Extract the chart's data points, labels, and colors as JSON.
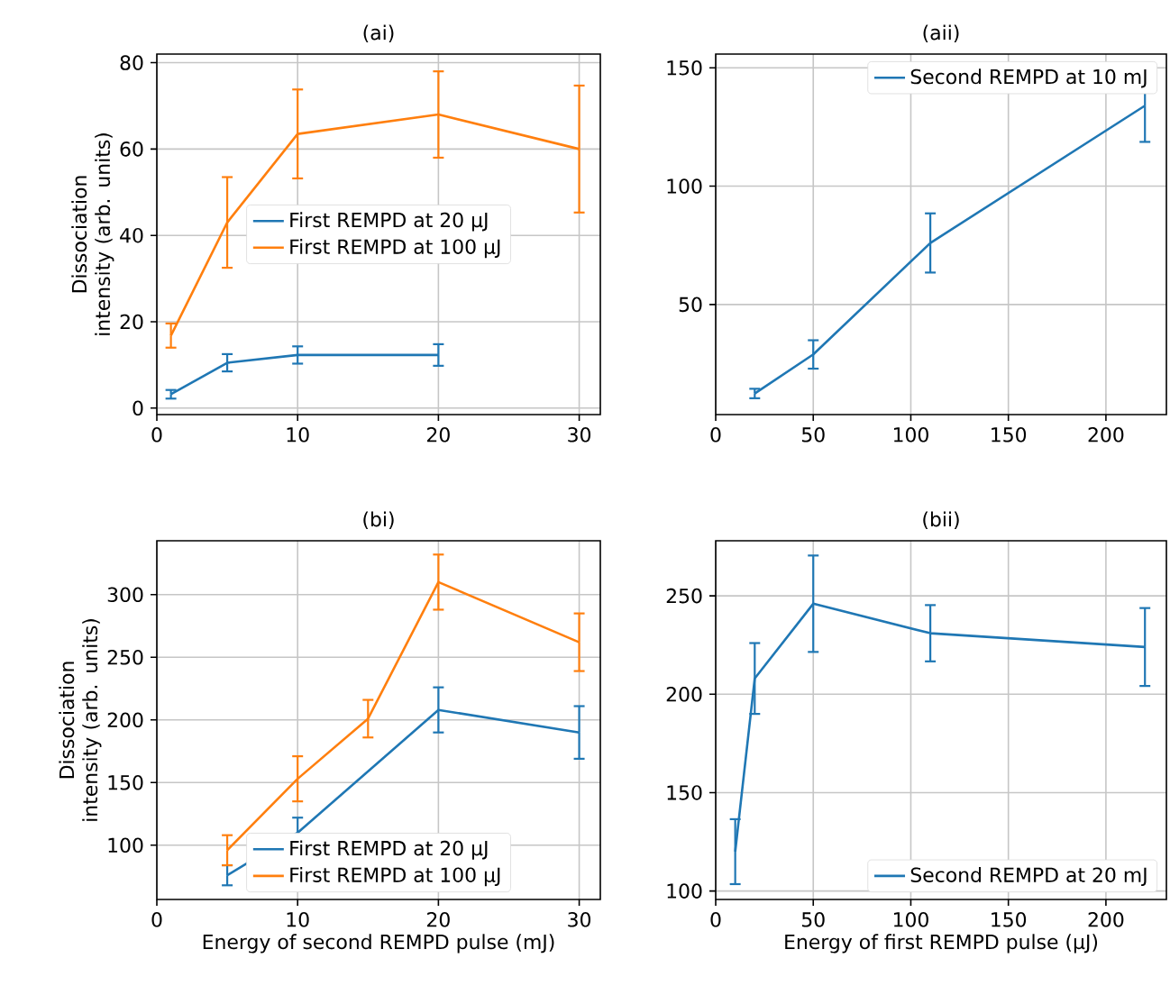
{
  "chart_data": [
    {
      "type": "line",
      "title": "(ai)",
      "ylabel": "Dissociation intensity (arb. units)",
      "xlim": [
        0,
        31.5
      ],
      "ylim": [
        -1.5,
        82
      ],
      "xticks": [
        0,
        10,
        20,
        30
      ],
      "yticks": [
        0,
        20,
        40,
        60,
        80
      ],
      "grid": true,
      "legend": "center",
      "series": [
        {
          "name": "First REMPD at 20 µJ",
          "color": "#1f77b4",
          "x": [
            1,
            5,
            10,
            20
          ],
          "values": [
            3.2,
            10.5,
            12.3,
            12.3
          ],
          "errors": [
            1,
            2,
            2,
            2.5
          ]
        },
        {
          "name": "First REMPD at 100 µJ",
          "color": "#ff7f0e",
          "x": [
            1,
            5,
            10,
            20,
            30
          ],
          "values": [
            16.8,
            43,
            63.5,
            68,
            60
          ],
          "errors": [
            2.8,
            10.5,
            10.3,
            10,
            14.7
          ]
        }
      ]
    },
    {
      "type": "line",
      "title": "(aii)",
      "xlim": [
        0,
        231
      ],
      "ylim": [
        3.5,
        155.8
      ],
      "xticks": [
        0,
        50,
        100,
        150,
        200
      ],
      "yticks": [
        50,
        100,
        150
      ],
      "grid": true,
      "legend": "top right",
      "series": [
        {
          "name": "Second REMPD at 10 mJ",
          "color": "#1f77b4",
          "x": [
            20,
            50,
            110,
            220
          ],
          "values": [
            12.4,
            28.9,
            76,
            134
          ],
          "errors": [
            2,
            6,
            12.5,
            15.3
          ]
        }
      ]
    },
    {
      "type": "line",
      "title": "(bi)",
      "xlabel": "Energy of second REMPD pulse (mJ)",
      "ylabel": "Dissociation intensity (arb. units)",
      "xlim": [
        0,
        31.5
      ],
      "ylim": [
        56.7,
        343
      ],
      "xticks": [
        0,
        10,
        20,
        30
      ],
      "yticks": [
        100,
        150,
        200,
        250,
        300
      ],
      "grid": true,
      "legend": "bottom",
      "series": [
        {
          "name": "First REMPD at 20 µJ",
          "color": "#1f77b4",
          "x": [
            5,
            10,
            20,
            30
          ],
          "values": [
            76,
            110,
            208,
            190
          ],
          "errors": [
            8,
            12,
            18,
            21
          ]
        },
        {
          "name": "First REMPD at 100 µJ",
          "color": "#ff7f0e",
          "x": [
            5,
            10,
            15,
            20,
            30
          ],
          "values": [
            96,
            153,
            201,
            310,
            262
          ],
          "errors": [
            12,
            18,
            15,
            22,
            23
          ]
        }
      ]
    },
    {
      "type": "line",
      "title": "(bii)",
      "xlabel": "Energy of first REMPD pulse (µJ)",
      "xlim": [
        0,
        231
      ],
      "ylim": [
        95.7,
        278
      ],
      "xticks": [
        0,
        50,
        100,
        150,
        200
      ],
      "yticks": [
        100,
        150,
        200,
        250
      ],
      "grid": true,
      "legend": "bottom right",
      "series": [
        {
          "name": "Second REMPD at 20 mJ",
          "color": "#1f77b4",
          "x": [
            10,
            20,
            50,
            110,
            220
          ],
          "values": [
            120,
            208,
            246,
            231,
            224
          ],
          "errors": [
            16.5,
            18,
            24.5,
            14.3,
            19.8
          ]
        }
      ]
    }
  ]
}
